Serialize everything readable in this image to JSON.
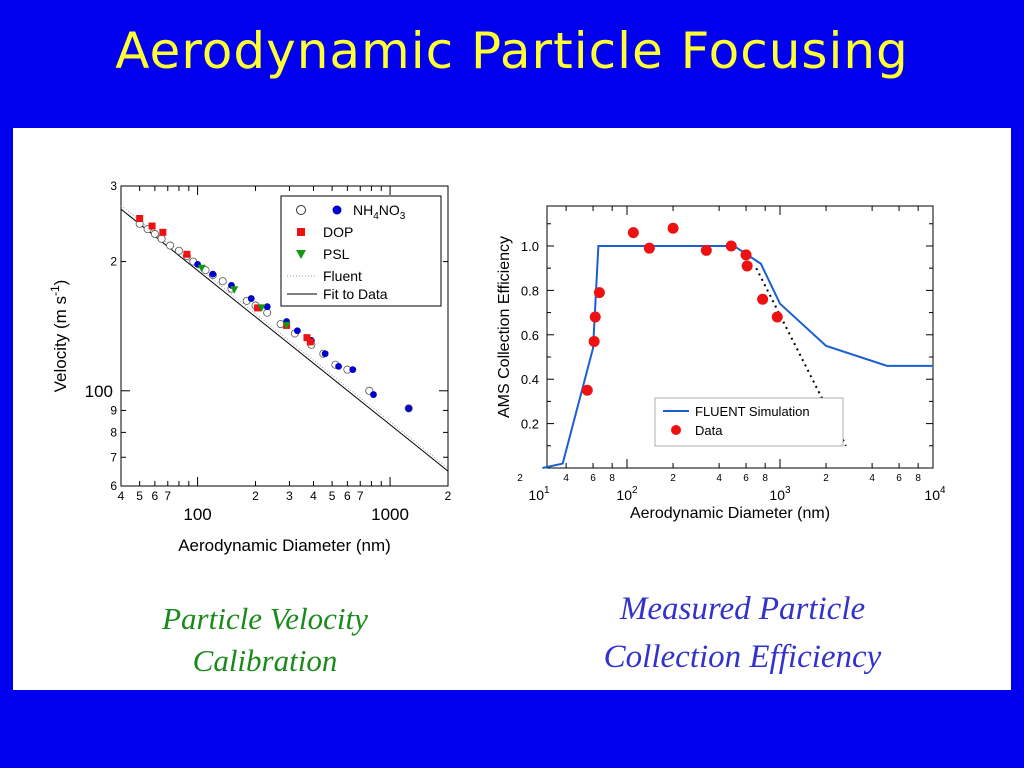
{
  "slide": {
    "title": "Aerodynamic Particle Focusing",
    "caption_left": [
      "Particle Velocity",
      "Calibration"
    ],
    "caption_right": [
      "Measured Particle",
      "Collection Efficiency"
    ]
  },
  "colors": {
    "background": "#0000ee",
    "title": "#ffff33",
    "panel": "#ffffff",
    "caption_left": "#1a8a1a",
    "caption_right": "#3333cc",
    "nh4no3": "#0000cc",
    "dop": "#ee1111",
    "psl": "#119911",
    "sim_line": "#1a5fd0",
    "data_marker": "#ee1111"
  },
  "chart_data": [
    {
      "type": "scatter",
      "xlabel": "Aerodynamic Diameter (nm)",
      "ylabel": "Velocity (m s-1)",
      "xscale": "log",
      "yscale": "log",
      "xlim": [
        40,
        2000
      ],
      "ylim": [
        60,
        300
      ],
      "x_major_labels": [
        "100",
        "1000"
      ],
      "x_minor_labels": [
        "4",
        "5",
        "6",
        "7",
        "2",
        "3",
        "4",
        "5",
        "6",
        "7",
        "2"
      ],
      "y_major_labels": [
        "100"
      ],
      "y_minor_labels": [
        "3",
        "2",
        "9",
        "8",
        "7",
        "6"
      ],
      "legend_position": "top-right",
      "legend": [
        "NH4NO3",
        "DOP",
        "PSL",
        "Fluent",
        "Fit to Data"
      ],
      "series": [
        {
          "name": "NH4NO3 (open)",
          "marker": "open-circle",
          "x": [
            50,
            55,
            60,
            65,
            72,
            80,
            88,
            95,
            110,
            120,
            135,
            150,
            180,
            200,
            230,
            270,
            320,
            390,
            450,
            520,
            600,
            780,
            1250
          ],
          "y": [
            245,
            238,
            232,
            226,
            218,
            212,
            206,
            200,
            191,
            186,
            180,
            173,
            162,
            158,
            152,
            143,
            136,
            128,
            122,
            115,
            112,
            100,
            91
          ]
        },
        {
          "name": "NH4NO3 (filled)",
          "marker": "filled-circle",
          "x": [
            100,
            120,
            150,
            190,
            230,
            290,
            330,
            390,
            460,
            540,
            640,
            820,
            1250
          ],
          "y": [
            197,
            187,
            176,
            164,
            157,
            145,
            138,
            131,
            122,
            114,
            112,
            98,
            91
          ]
        },
        {
          "name": "DOP",
          "marker": "square",
          "x": [
            50,
            58,
            66,
            88,
            205,
            290,
            370,
            385
          ],
          "y": [
            252,
            242,
            234,
            208,
            156,
            142,
            133,
            130
          ]
        },
        {
          "name": "PSL",
          "marker": "triangle-down",
          "x": [
            105,
            155,
            215,
            290
          ],
          "y": [
            193,
            172,
            156,
            142
          ]
        },
        {
          "name": "Fit to Data",
          "line": "solid",
          "x": [
            40,
            2000
          ],
          "y": [
            265,
            65
          ]
        },
        {
          "name": "Fluent",
          "line": "dotted",
          "x": [
            40,
            2000
          ],
          "y": [
            270,
            66
          ]
        }
      ]
    },
    {
      "type": "line",
      "xlabel": "Aerodynamic Diameter (nm)",
      "ylabel": "AMS Collection Efficiency",
      "xscale": "log",
      "xlim": [
        30,
        10000
      ],
      "ylim": [
        0,
        1.18
      ],
      "yticks": [
        "0.2",
        "0.4",
        "0.6",
        "0.8",
        "1.0"
      ],
      "x_major_labels": [
        [
          "10",
          "1"
        ],
        [
          "10",
          "2"
        ],
        [
          "10",
          "3"
        ],
        [
          "10",
          "4"
        ]
      ],
      "x_minor_labels": [
        "2",
        "4",
        "6",
        "8",
        "2",
        "4",
        "6",
        "8",
        "2",
        "4",
        "6",
        "8"
      ],
      "legend_position": "bottom-center",
      "legend": [
        "FLUENT Simulation",
        "Data"
      ],
      "series": [
        {
          "name": "FLUENT Simulation",
          "line": "solid",
          "x": [
            28,
            38,
            60,
            65,
            500,
            750,
            1000,
            2000,
            5000,
            10000
          ],
          "y": [
            0.0,
            0.02,
            0.54,
            1.0,
            1.0,
            0.92,
            0.74,
            0.55,
            0.46,
            0.46
          ]
        },
        {
          "name": "Extrapolation",
          "line": "dotted",
          "x": [
            700,
            2700
          ],
          "y": [
            0.9,
            0.1
          ]
        },
        {
          "name": "Data",
          "marker": "filled-circle",
          "x": [
            55,
            61,
            62,
            66,
            110,
            140,
            200,
            330,
            480,
            600,
            610,
            770,
            960
          ],
          "y": [
            0.35,
            0.57,
            0.68,
            0.79,
            1.06,
            0.99,
            1.08,
            0.98,
            1.0,
            0.96,
            0.91,
            0.76,
            0.68
          ]
        }
      ]
    }
  ]
}
